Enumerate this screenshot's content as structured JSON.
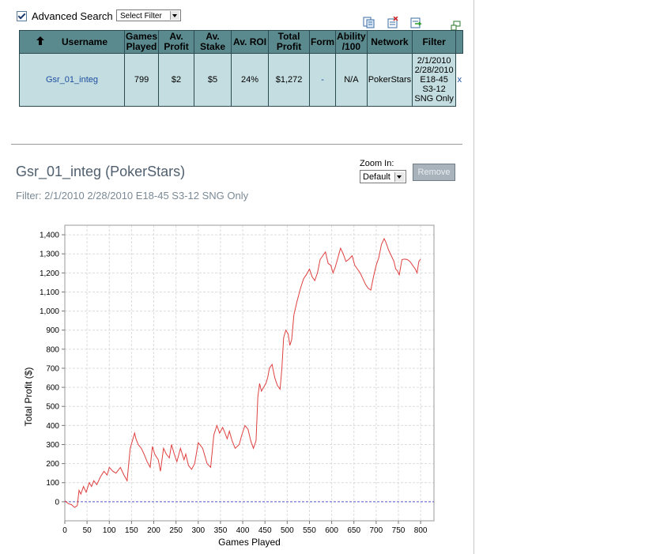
{
  "advanced_search": {
    "label": "Advanced Search",
    "checked": true
  },
  "filter_select": {
    "value": "Select Filter"
  },
  "table": {
    "headers": [
      "Username",
      "Games Played",
      "Av. Profit",
      "Av. Stake",
      "Av. ROI",
      "Total Profit",
      "Form",
      "Ability /100",
      "Network",
      "Filter"
    ],
    "row": {
      "username": "Gsr_01_integ",
      "games_played": "799",
      "av_profit": "$2",
      "av_stake": "$5",
      "av_roi": "24%",
      "total_profit": "$1,272",
      "form": "-",
      "ability": "N/A",
      "network": "PokerStars",
      "filter": [
        "2/1/2010",
        "2/28/2010",
        "E18-45",
        "S3-12",
        "SNG Only"
      ],
      "remove": "x"
    }
  },
  "player": {
    "title": "Gsr_01_integ (PokerStars)",
    "filter_text": "Filter: 2/1/2010 2/28/2010 E18-45 S3-12 SNG Only",
    "zoom_label": "Zoom In:",
    "zoom_value": "Default",
    "remove_button": "Remove"
  },
  "colors": {
    "header_bg": "#5a8a8e",
    "cell_bg": "#c4dde0",
    "line": "#e04040",
    "zero_line": "#5a5ad0"
  },
  "chart_data": {
    "type": "line",
    "xlabel": "Games Played",
    "ylabel": "Total Profit ($)",
    "xlim": [
      0,
      830
    ],
    "ylim": [
      -100,
      1450
    ],
    "xticks": [
      0,
      50,
      100,
      150,
      200,
      250,
      300,
      350,
      400,
      450,
      500,
      550,
      600,
      650,
      700,
      750,
      800
    ],
    "yticks": [
      0,
      100,
      200,
      300,
      400,
      500,
      600,
      700,
      800,
      900,
      1000,
      1100,
      1200,
      1300,
      1400
    ],
    "ytick_labels": [
      "0",
      "100",
      "200",
      "300",
      "400",
      "500",
      "600",
      "700",
      "800",
      "900",
      "1,000",
      "1,100",
      "1,200",
      "1,300",
      "1,400"
    ],
    "grid": true,
    "series": [
      {
        "x": [
          0,
          8,
          15,
          22,
          28,
          32,
          36,
          42,
          48,
          55,
          60,
          65,
          72,
          80,
          88,
          95,
          100,
          108,
          115,
          125,
          133,
          140,
          147,
          152,
          157,
          160,
          165,
          172,
          178,
          185,
          192,
          197,
          202,
          210,
          215,
          222,
          228,
          235,
          240,
          246,
          252,
          260,
          268,
          272,
          278,
          285,
          292,
          300,
          310,
          320,
          328,
          335,
          342,
          348,
          355,
          360,
          365,
          370,
          376,
          383,
          392,
          398,
          405,
          412,
          418,
          424,
          430,
          434,
          438,
          442,
          447,
          452,
          456,
          460,
          466,
          472,
          478,
          484,
          488,
          492,
          497,
          502,
          506,
          510,
          515,
          522,
          530,
          537,
          543,
          550,
          556,
          562,
          568,
          574,
          580,
          586,
          592,
          598,
          603,
          608,
          614,
          620,
          626,
          632,
          638,
          642,
          646,
          652,
          658,
          664,
          670,
          676,
          682,
          688,
          694,
          700,
          706,
          712,
          718,
          722,
          728,
          734,
          740,
          744,
          748,
          752,
          758,
          764,
          770,
          776,
          782,
          788,
          792,
          796,
          800
        ],
        "y": [
          5,
          -10,
          -15,
          -30,
          -20,
          60,
          40,
          80,
          50,
          100,
          80,
          110,
          90,
          130,
          160,
          140,
          180,
          160,
          150,
          180,
          140,
          110,
          280,
          320,
          360,
          330,
          300,
          280,
          250,
          210,
          180,
          290,
          250,
          220,
          160,
          280,
          250,
          230,
          300,
          250,
          210,
          280,
          220,
          250,
          190,
          170,
          200,
          310,
          280,
          200,
          180,
          350,
          400,
          360,
          390,
          360,
          330,
          370,
          320,
          280,
          300,
          350,
          400,
          380,
          320,
          280,
          320,
          550,
          620,
          580,
          600,
          620,
          650,
          700,
          720,
          650,
          610,
          590,
          700,
          860,
          900,
          880,
          820,
          850,
          980,
          1050,
          1120,
          1170,
          1190,
          1220,
          1180,
          1160,
          1200,
          1270,
          1290,
          1310,
          1250,
          1240,
          1200,
          1230,
          1280,
          1330,
          1300,
          1260,
          1270,
          1280,
          1290,
          1240,
          1220,
          1200,
          1170,
          1140,
          1120,
          1110,
          1180,
          1240,
          1280,
          1350,
          1380,
          1360,
          1320,
          1290,
          1260,
          1220,
          1210,
          1190,
          1270,
          1272,
          1270,
          1260,
          1240,
          1220,
          1200,
          1260,
          1272
        ]
      }
    ]
  }
}
